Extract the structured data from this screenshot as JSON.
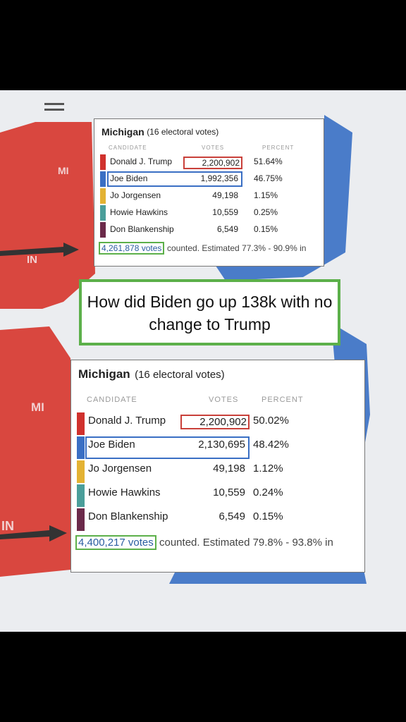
{
  "panels": [
    {
      "title": "Michigan",
      "subtitle": "(16 electoral votes)",
      "headers": [
        "CANDIDATE",
        "VOTES",
        "PERCENT"
      ],
      "rows": [
        [
          "Donald J. Trump",
          "2,200,902",
          "51.64%"
        ],
        [
          "Joe Biden",
          "1,992,356",
          "46.75%"
        ],
        [
          "Jo Jorgensen",
          "49,198",
          "1.15%"
        ],
        [
          "Howie Hawkins",
          "10,559",
          "0.25%"
        ],
        [
          "Don Blankenship",
          "6,549",
          "0.15%"
        ]
      ],
      "footer": {
        "votes": "4,261,878 votes",
        "text": "counted. Estimated 77.3% - 90.9% in"
      }
    },
    {
      "title": "Michigan",
      "subtitle": "(16 electoral votes)",
      "headers": [
        "CANDIDATE",
        "VOTES",
        "PERCENT"
      ],
      "rows": [
        [
          "Donald J. Trump",
          "2,200,902",
          "50.02%"
        ],
        [
          "Joe Biden",
          "2,130,695",
          "48.42%"
        ],
        [
          "Jo Jorgensen",
          "49,198",
          "1.12%"
        ],
        [
          "Howie Hawkins",
          "10,559",
          "0.24%"
        ],
        [
          "Don Blankenship",
          "6,549",
          "0.15%"
        ]
      ],
      "footer": {
        "votes": "4,400,217 votes",
        "text": "counted. Estimated 79.8% - 93.8% in"
      }
    }
  ],
  "candidate_colors": [
    "#d0312d",
    "#3a6fc4",
    "#e3b233",
    "#4a9e9a",
    "#6b2a4a"
  ],
  "caption": "How did Biden go up 138k with no change to Trump",
  "map_labels": {
    "top_mi": "MI",
    "top_in": "IN",
    "bottom_mi": "MI",
    "bottom_in": "IN"
  }
}
